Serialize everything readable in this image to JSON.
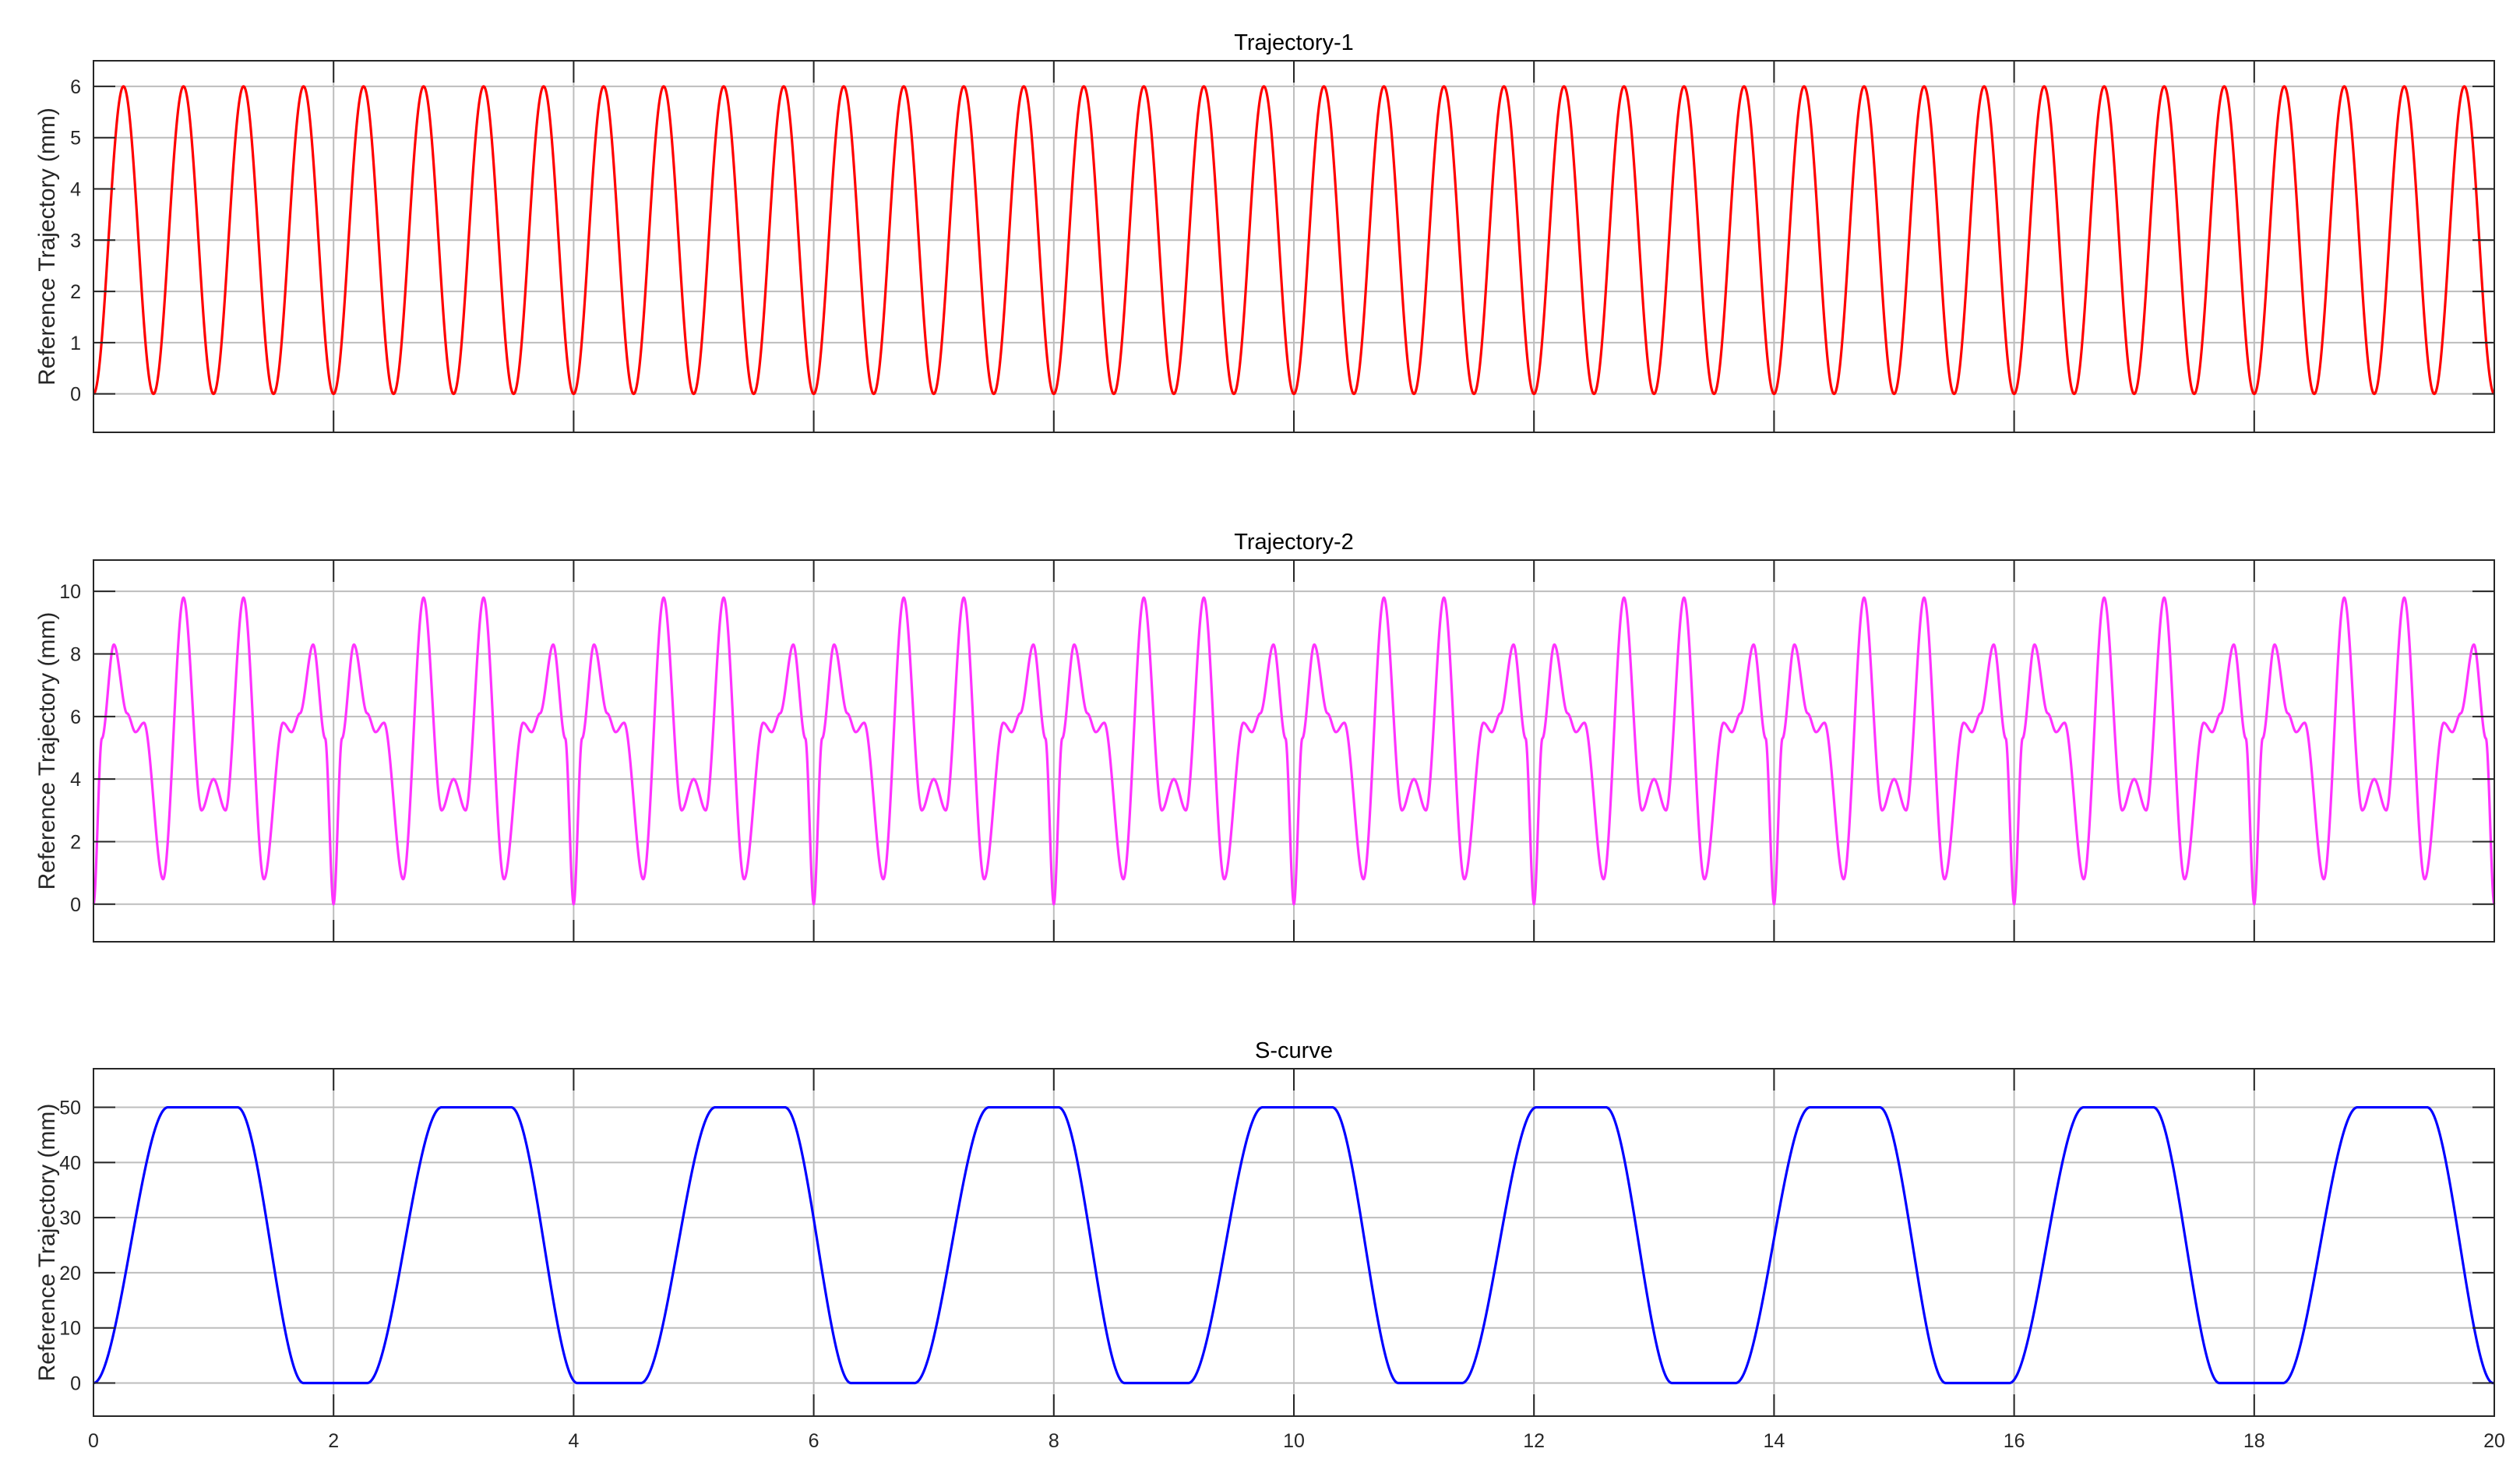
{
  "chart_data": [
    {
      "type": "line",
      "title": "Trajectory-1",
      "xlabel": "",
      "ylabel": "Reference Trajectory (mm)",
      "xlim": [
        0,
        20
      ],
      "ylim": [
        -0.75,
        6.5
      ],
      "xticks": [
        0,
        2,
        4,
        6,
        8,
        10,
        12,
        14,
        16,
        18,
        20
      ],
      "xtick_labels_visible": false,
      "yticks": [
        0,
        1,
        2,
        3,
        4,
        5,
        6
      ],
      "grid": true,
      "series": [
        {
          "color": "#ff0000",
          "kind": "raised-cosine",
          "formula": "y = 3 - 3*cos(2*pi*f*x)",
          "frequency_hz": 2,
          "min": 0,
          "max": 6,
          "x_range": [
            0,
            20
          ]
        }
      ]
    },
    {
      "type": "line",
      "title": "Trajectory-2",
      "xlabel": "",
      "ylabel": "Reference Trajectory (mm)",
      "xlim": [
        0,
        20
      ],
      "ylim": [
        -1.2,
        11
      ],
      "xticks": [
        0,
        2,
        4,
        6,
        8,
        10,
        12,
        14,
        16,
        18,
        20
      ],
      "xtick_labels_visible": false,
      "yticks": [
        0,
        2,
        4,
        6,
        8,
        10
      ],
      "grid": true,
      "series": [
        {
          "color": "#ff33ff",
          "kind": "periodic-profile",
          "period_s": 2,
          "x_range": [
            0,
            20
          ],
          "one_period_points": [
            [
              0.0,
              0.0
            ],
            [
              0.07,
              5.3
            ],
            [
              0.17,
              8.3
            ],
            [
              0.28,
              6.1
            ],
            [
              0.35,
              5.5
            ],
            [
              0.42,
              5.8
            ],
            [
              0.58,
              0.8
            ],
            [
              0.75,
              9.8
            ],
            [
              0.9,
              3.0
            ],
            [
              1.0,
              4.0
            ],
            [
              1.1,
              3.0
            ],
            [
              1.25,
              9.8
            ],
            [
              1.42,
              0.8
            ],
            [
              1.58,
              5.8
            ],
            [
              1.65,
              5.5
            ],
            [
              1.72,
              6.1
            ],
            [
              1.83,
              8.3
            ],
            [
              1.93,
              5.3
            ],
            [
              2.0,
              0.0
            ]
          ]
        }
      ]
    },
    {
      "type": "line",
      "title": "S-curve",
      "xlabel": "",
      "ylabel": "Reference Trajectory (mm)",
      "xlim": [
        0,
        20
      ],
      "ylim": [
        -6,
        57
      ],
      "xticks": [
        0,
        2,
        4,
        6,
        8,
        10,
        12,
        14,
        16,
        18,
        20
      ],
      "xtick_labels": [
        "0",
        "2",
        "4",
        "6",
        "8",
        "10",
        "12",
        "14",
        "16",
        "18",
        "20"
      ],
      "yticks": [
        0,
        10,
        20,
        30,
        40,
        50
      ],
      "grid": true,
      "series": [
        {
          "color": "#0000ff",
          "kind": "s-curve",
          "period_s": 2.28,
          "low": 0,
          "high": 50,
          "rise_start_s": 0.0,
          "rise_end_s": 0.62,
          "fall_start_s": 1.2,
          "fall_end_s": 1.75,
          "x_range": [
            0,
            20
          ]
        }
      ]
    }
  ]
}
